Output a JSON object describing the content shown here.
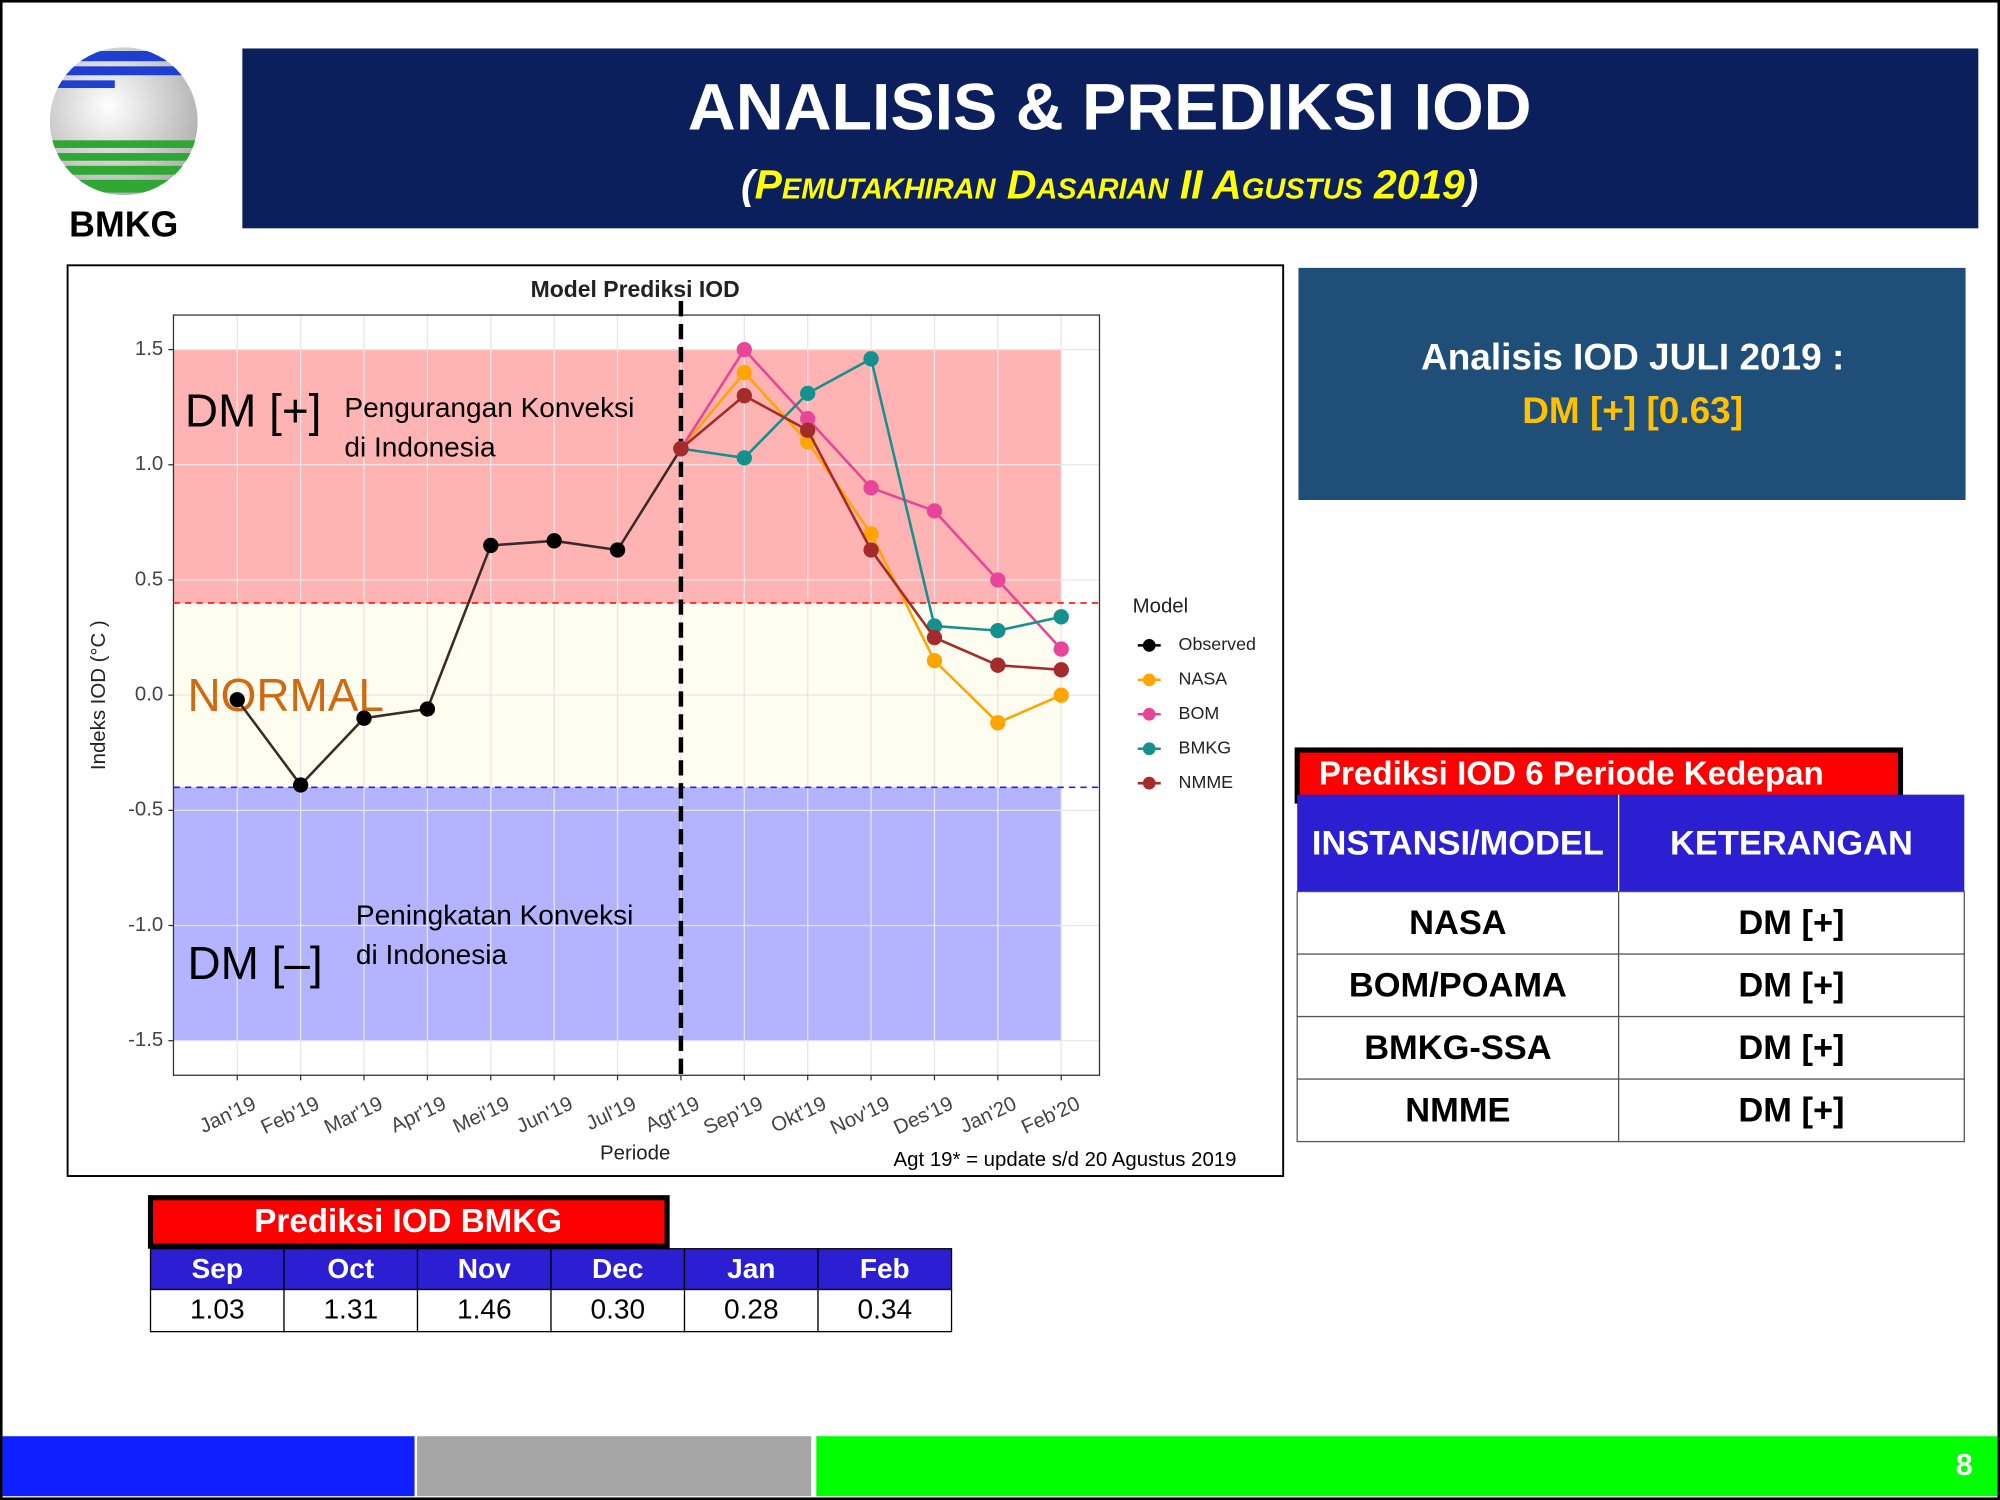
{
  "header": {
    "logo_text": "BMKG",
    "title": "ANALISIS & PREDIKSI IOD",
    "subtitle_open": "(",
    "subtitle": "Pemutakhiran Dasarian II Agustus 2019",
    "subtitle_close": ")"
  },
  "chart_data": {
    "type": "line",
    "title": "Model Prediksi IOD",
    "x_label": "Periode",
    "y_label": "Indeks IOD (°C )",
    "categories": [
      "Jan'19",
      "Feb'19",
      "Mar'19",
      "Apr'19",
      "Mei'19",
      "Jun'19",
      "Jul'19",
      "Agt'19",
      "Sep'19",
      "Okt'19",
      "Nov'19",
      "Des'19",
      "Jan'20",
      "Feb'20"
    ],
    "series": [
      {
        "name": "Observed",
        "color": "#000000",
        "values": [
          -0.02,
          -0.39,
          -0.1,
          -0.06,
          0.65,
          0.67,
          0.63,
          1.07,
          null,
          null,
          null,
          null,
          null,
          null
        ]
      },
      {
        "name": "NASA",
        "color": "#ffa500",
        "values": [
          null,
          null,
          null,
          null,
          null,
          null,
          null,
          1.07,
          1.4,
          1.1,
          0.7,
          0.15,
          -0.12,
          0.0
        ]
      },
      {
        "name": "BOM",
        "color": "#e8459a",
        "values": [
          null,
          null,
          null,
          null,
          null,
          null,
          null,
          1.07,
          1.5,
          1.2,
          0.9,
          0.8,
          0.5,
          0.2
        ]
      },
      {
        "name": "BMKG",
        "color": "#14908e",
        "values": [
          null,
          null,
          null,
          null,
          null,
          null,
          null,
          1.07,
          1.03,
          1.31,
          1.46,
          0.3,
          0.28,
          0.34
        ]
      },
      {
        "name": "NMME",
        "color": "#a52a2a",
        "values": [
          null,
          null,
          null,
          null,
          null,
          null,
          null,
          1.07,
          1.3,
          1.15,
          0.63,
          0.25,
          0.13,
          0.11
        ]
      }
    ],
    "ylim": [
      -1.65,
      1.65
    ],
    "yticks": [
      1.5,
      {
        "value": 1,
        "label": "1.0"
      },
      0.5,
      {
        "value": 0,
        "label": "0.0"
      },
      -0.5,
      {
        "value": -1,
        "label": "-1.0"
      },
      -1.5
    ],
    "grid": true,
    "legend_title": "Model",
    "legend": "right",
    "bands": [
      {
        "from": 0.4,
        "to": 1.5,
        "color": "#ffb3b3"
      },
      {
        "from": -0.4,
        "to": 0.4,
        "color": "#fffdf0"
      },
      {
        "from": -1.5,
        "to": -0.4,
        "color": "#b3b3ff"
      }
    ],
    "thresholds": [
      {
        "value": 0.4,
        "color": "#ff2020"
      },
      {
        "value": -0.4,
        "color": "#2020ff"
      }
    ],
    "vline": "Agt'19",
    "band_labels": {
      "positive": "DM [+]",
      "positive_note": [
        "Pengurangan Konveksi",
        "di Indonesia"
      ],
      "normal": "NORMAL",
      "negative": "DM [–]",
      "negative_note": [
        "Peningkatan Konveksi",
        "di Indonesia"
      ]
    },
    "note": "Agt 19* = update s/d 20 Agustus 2019"
  },
  "analysis": {
    "title": "Analisis IOD JULI 2019 :",
    "value": "DM [+] [0.63]"
  },
  "table1": {
    "title": "Prediksi IOD 6 Periode Kedepan",
    "headers": [
      "INSTANSI/MODEL",
      "KETERANGAN"
    ],
    "rows": [
      [
        "NASA",
        "DM [+]"
      ],
      [
        "BOM/POAMA",
        "DM [+]"
      ],
      [
        "BMKG-SSA",
        "DM [+]"
      ],
      [
        "NMME",
        "DM [+]"
      ]
    ]
  },
  "table2": {
    "title": "Prediksi IOD BMKG",
    "headers": [
      "Sep",
      "Oct",
      "Nov",
      "Dec",
      "Jan",
      "Feb"
    ],
    "values": [
      "1.03",
      "1.31",
      "1.46",
      "0.30",
      "0.28",
      "0.34"
    ]
  },
  "footer": {
    "page": "8"
  }
}
